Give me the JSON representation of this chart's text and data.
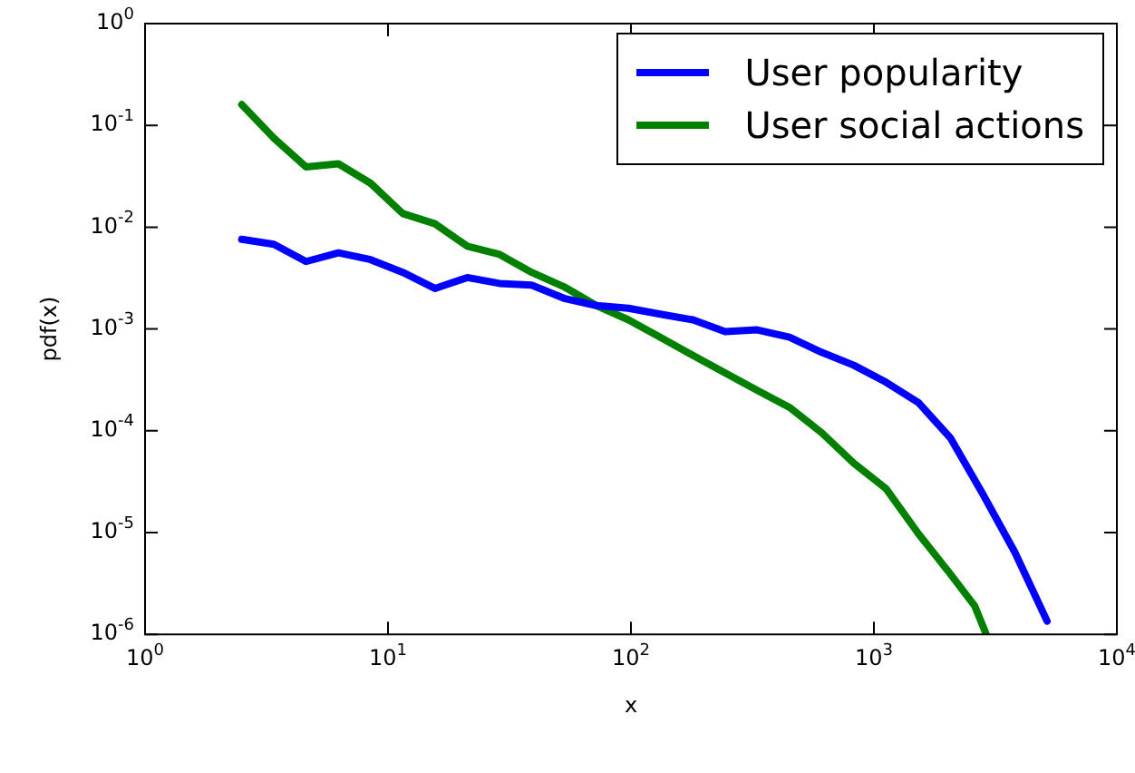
{
  "chart_data": {
    "type": "line",
    "xlabel": "x",
    "ylabel": "pdf(x)",
    "log": "xy",
    "grid": false,
    "legend": "top right",
    "marker": "none",
    "line_style": "solid",
    "x": [
      2.5,
      3.39,
      4.6,
      6.25,
      8.48,
      11.5,
      15.6,
      21.2,
      28.8,
      39,
      53,
      72,
      97.6,
      132,
      180,
      244,
      331,
      449,
      609,
      827,
      1122,
      1522,
      2066,
      2803,
      3804,
      5162
    ],
    "xlim": [
      1,
      10000
    ],
    "ylim": [
      1e-06,
      1
    ],
    "xticks": [
      {
        "value": 1,
        "label": "10$^{0}$"
      },
      {
        "value": 10,
        "label": "10$^{1}$"
      },
      {
        "value": 100,
        "label": "10$^{2}$"
      },
      {
        "value": 1000,
        "label": "10$^{3}$"
      },
      {
        "value": 10000,
        "label": "10$^{4}$"
      }
    ],
    "yticks": [
      {
        "value": 1e-06,
        "label": "10$^{-6}$"
      },
      {
        "value": 1e-05,
        "label": "10$^{-5}$"
      },
      {
        "value": 0.0001,
        "label": "10$^{-4}$"
      },
      {
        "value": 0.001,
        "label": "10$^{-3}$"
      },
      {
        "value": 0.01,
        "label": "10$^{-2}$"
      },
      {
        "value": 0.1,
        "label": "10$^{-1}$"
      },
      {
        "value": 1,
        "label": "10$^{0}$"
      }
    ],
    "series": [
      {
        "name": "User popularity",
        "color": "#0000ff",
        "values": [
          0.0076,
          0.0068,
          0.0046,
          0.0056,
          0.0048,
          0.0036,
          0.0025,
          0.0032,
          0.0028,
          0.0027,
          0.002,
          0.0017,
          0.0016,
          0.0014,
          0.00123,
          0.00094,
          0.00098,
          0.00083,
          0.00059,
          0.00044,
          0.0003,
          0.00019,
          8.5e-05,
          2.4e-05,
          6.4e-06,
          1.35e-06
        ]
      },
      {
        "name": "User social actions",
        "color": "#008000",
        "x": [
          2.5,
          3.39,
          4.6,
          6.25,
          8.48,
          11.5,
          15.6,
          21.2,
          28.8,
          39,
          53,
          72,
          97.6,
          132,
          180,
          244,
          331,
          449,
          609,
          827,
          1122,
          1522,
          2066,
          2600,
          2900
        ],
        "values": [
          0.16,
          0.075,
          0.039,
          0.042,
          0.027,
          0.0136,
          0.0108,
          0.0065,
          0.0054,
          0.0036,
          0.0026,
          0.0017,
          0.00123,
          0.00083,
          0.00055,
          0.00037,
          0.00025,
          0.00017,
          9.6e-05,
          4.8e-05,
          2.7e-05,
          9.8e-06,
          3.9e-06,
          1.9e-06,
          1e-06
        ]
      }
    ]
  }
}
